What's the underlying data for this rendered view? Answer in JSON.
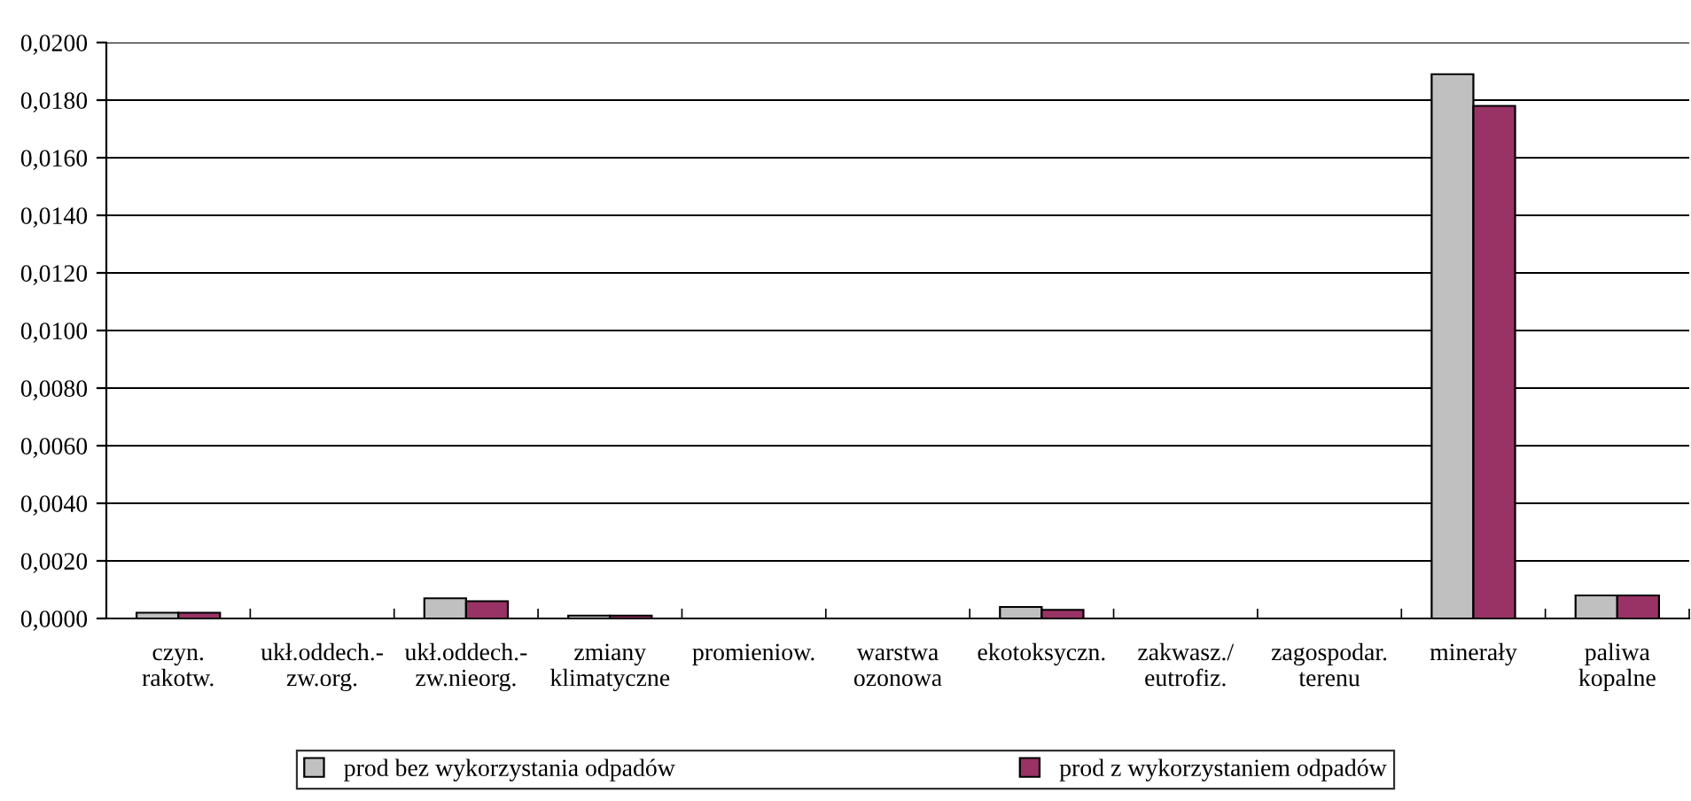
{
  "chart_data": {
    "type": "bar",
    "categories": [
      "czyn.\nrakotw.",
      "ukł.oddech.-\nzw.org.",
      "ukł.oddech.-\nzw.nieorg.",
      "zmiany\nklimatyczne",
      "promieniow.",
      "warstwa\nozonowa",
      "ekotoksyczn.",
      "zakwasz./\neutrofiz.",
      "zagospodar.\nterenu",
      "minerały",
      "paliwa\nkopalne"
    ],
    "series": [
      {
        "name": "prod bez wykorzystania odpadów",
        "color": "#c0c0c0",
        "values": [
          0.0002,
          0,
          0.0007,
          0.0001,
          0,
          0,
          0.0004,
          0,
          0,
          0.0189,
          0.0008
        ]
      },
      {
        "name": "prod z wykorzystaniem odpadów",
        "color": "#993366",
        "values": [
          0.0002,
          0,
          0.0006,
          0.0001,
          0,
          0,
          0.0003,
          0,
          0,
          0.0178,
          0.0008
        ]
      }
    ],
    "ylim": [
      0,
      0.02
    ],
    "yticks": [
      {
        "value": 0,
        "label": "0,0000"
      },
      {
        "value": 0.002,
        "label": "0,0020"
      },
      {
        "value": 0.004,
        "label": "0,0040"
      },
      {
        "value": 0.006,
        "label": "0,0060"
      },
      {
        "value": 0.008,
        "label": "0,0080"
      },
      {
        "value": 0.01,
        "label": "0,0100"
      },
      {
        "value": 0.012,
        "label": "0,0120"
      },
      {
        "value": 0.014,
        "label": "0,0140"
      },
      {
        "value": 0.016,
        "label": "0,0160"
      },
      {
        "value": 0.018,
        "label": "0,0180"
      },
      {
        "value": 0.02,
        "label": "0,0200"
      }
    ],
    "grid": "y",
    "legend": "bottom"
  }
}
